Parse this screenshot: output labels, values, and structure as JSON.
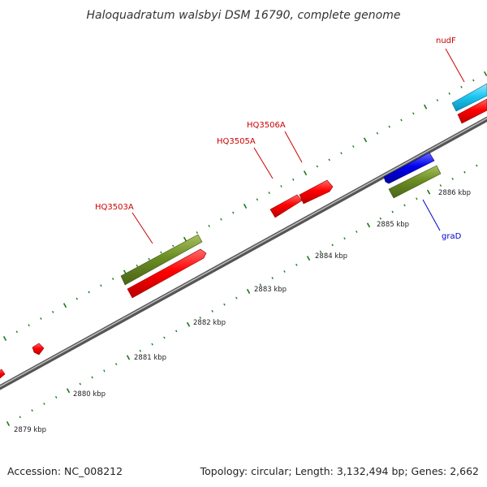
{
  "title": "Haloquadratum walsbyi DSM 16790, complete genome",
  "footer": {
    "accession": "Accession: NC_008212",
    "topology": "Topology: circular; Length: 3,132,494 bp; Genes: 2,662"
  },
  "scale": {
    "ticks": [
      {
        "label": "2879 kbp"
      },
      {
        "label": "2880 kbp"
      },
      {
        "label": "2881 kbp"
      },
      {
        "label": "2882 kbp"
      },
      {
        "label": "2883 kbp"
      },
      {
        "label": "2884 kbp"
      },
      {
        "label": "2885 kbp"
      },
      {
        "label": "2886 kbp"
      }
    ]
  },
  "genes": [
    {
      "name": "HQ3503A",
      "color": "#cc0000"
    },
    {
      "name": "HQ3505A",
      "color": "#cc0000"
    },
    {
      "name": "HQ3506A",
      "color": "#cc0000"
    },
    {
      "name": "nudF",
      "color": "#cc0000"
    },
    {
      "name": "graD",
      "color": "#0000cc"
    }
  ],
  "colors": {
    "backbone": "#7a7a7a",
    "cds_red": "#ff0000",
    "gene_green": "#6b8e23",
    "gene_blue": "#0000ee",
    "gene_cyan": "#1ec8f0",
    "tick_green": "#1a7a1a"
  }
}
